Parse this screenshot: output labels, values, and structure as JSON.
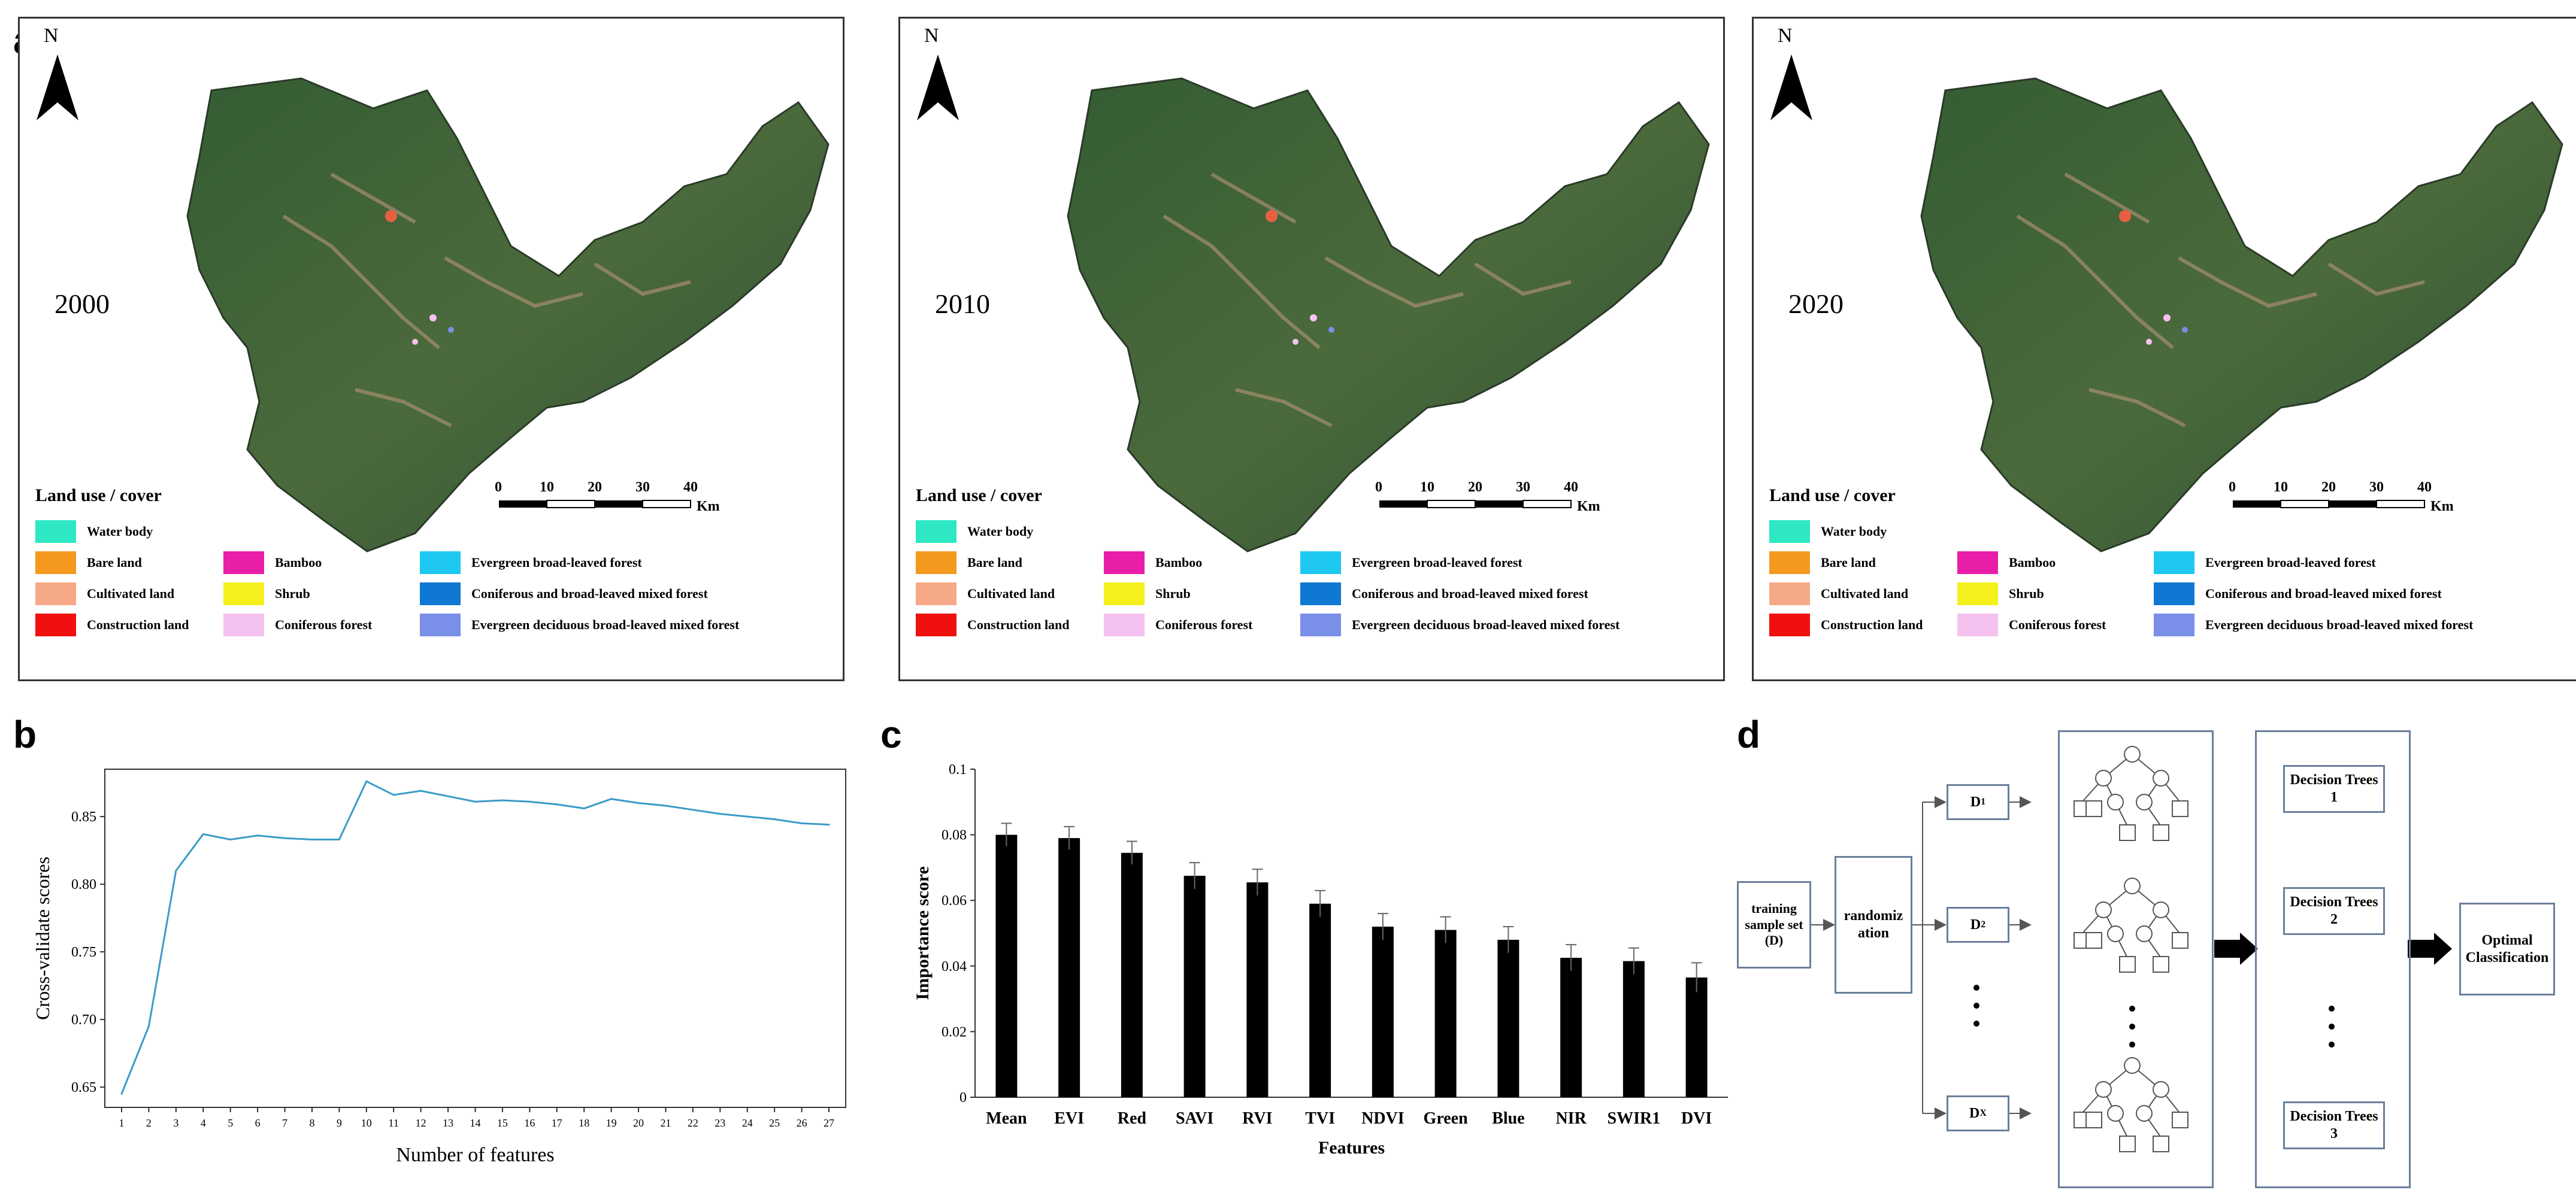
{
  "panels": {
    "a": "a",
    "b": "b",
    "c": "c",
    "d": "d"
  },
  "maps": [
    {
      "year": "2000",
      "north": "N",
      "legend_title": "Land use / cover",
      "scale_labels": [
        "0",
        "10",
        "20",
        "30",
        "40"
      ],
      "scale_unit": "Km"
    },
    {
      "year": "2010",
      "north": "N",
      "legend_title": "Land use / cover",
      "scale_labels": [
        "0",
        "10",
        "20",
        "30",
        "40"
      ],
      "scale_unit": "Km"
    },
    {
      "year": "2020",
      "north": "N",
      "legend_title": "Land use / cover",
      "scale_labels": [
        "0",
        "10",
        "20",
        "30",
        "40"
      ],
      "scale_unit": "Km"
    }
  ],
  "legend_items": [
    {
      "label": "Water body",
      "color": "#2ee8c4"
    },
    {
      "label": "Bare land",
      "color": "#f39a1e"
    },
    {
      "label": "Cultivated land",
      "color": "#f5a987"
    },
    {
      "label": "Construction land",
      "color": "#f01010"
    },
    {
      "label": "Bamboo",
      "color": "#e81ea8"
    },
    {
      "label": "Shrub",
      "color": "#f5f01e"
    },
    {
      "label": "Coniferous forest",
      "color": "#f5c2f0"
    },
    {
      "label": "Evergreen broad-leaved forest",
      "color": "#1ec8f0"
    },
    {
      "label": "Coniferous and broad-leaved mixed forest",
      "color": "#0f78d2"
    },
    {
      "label": "Evergreen deciduous broad-leaved mixed forest",
      "color": "#7a8fe8"
    }
  ],
  "chart_data": [
    {
      "type": "line",
      "title": "",
      "xlabel": "Number of features",
      "ylabel": "Cross-validate scores",
      "x": [
        1,
        2,
        3,
        4,
        5,
        6,
        7,
        8,
        9,
        10,
        11,
        12,
        13,
        14,
        15,
        16,
        17,
        18,
        19,
        20,
        21,
        22,
        23,
        24,
        25,
        26,
        27
      ],
      "values": [
        0.645,
        0.695,
        0.81,
        0.837,
        0.833,
        0.836,
        0.834,
        0.833,
        0.833,
        0.876,
        0.866,
        0.869,
        0.865,
        0.861,
        0.862,
        0.861,
        0.859,
        0.856,
        0.863,
        0.86,
        0.858,
        0.855,
        0.852,
        0.85,
        0.848,
        0.845,
        0.844
      ],
      "ylim": [
        0.635,
        0.885
      ],
      "yticks": [
        "0.65",
        "0.70",
        "0.75",
        "0.80",
        "0.85"
      ],
      "line_color": "#3a9bc8",
      "grid": false
    },
    {
      "type": "bar",
      "title": "",
      "xlabel": "Features",
      "ylabel": "Importance score",
      "categories": [
        "Mean",
        "EVI",
        "Red",
        "SAVI",
        "RVI",
        "TVI",
        "NDVI",
        "Green",
        "Blue",
        "NIR",
        "SWIR1",
        "DVI"
      ],
      "values": [
        0.08,
        0.079,
        0.0745,
        0.0675,
        0.0655,
        0.059,
        0.052,
        0.051,
        0.048,
        0.0425,
        0.0415,
        0.0365
      ],
      "errors": [
        0.0035,
        0.0035,
        0.0035,
        0.004,
        0.004,
        0.004,
        0.004,
        0.004,
        0.004,
        0.004,
        0.004,
        0.0045
      ],
      "ylim": [
        0,
        0.1
      ],
      "yticks": [
        "0",
        "0.02",
        "0.04",
        "0.06",
        "0.08",
        "0.1"
      ],
      "bar_color": "#000000",
      "grid": false
    }
  ],
  "flowchart": {
    "training": "training sample set (D)",
    "randomization": "randomiz ation",
    "d1": "D",
    "d1_sub": "1",
    "d2": "D",
    "d2_sub": "2",
    "dx": "D",
    "dx_sub": "X",
    "tree1": "Decision Trees 1",
    "tree2": "Decision Trees 2",
    "tree3": "Decision Trees 3",
    "optimal": "Optimal Classification"
  }
}
